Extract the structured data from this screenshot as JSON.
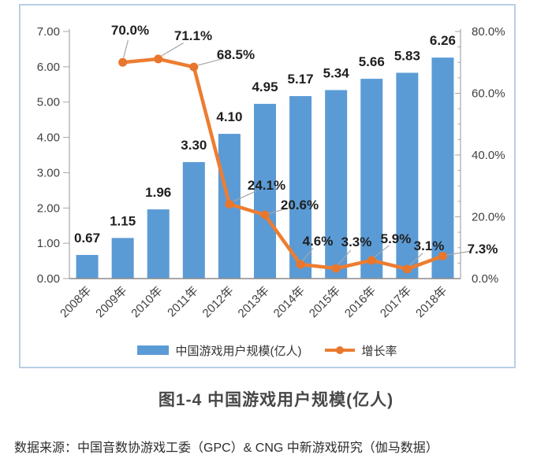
{
  "chart_data": {
    "type": "combo-bar-line",
    "title": "",
    "categories": [
      "2008年",
      "2009年",
      "2010年",
      "2011年",
      "2012年",
      "2013年",
      "2014年",
      "2015年",
      "2016年",
      "2017年",
      "2018年"
    ],
    "series": [
      {
        "name": "中国游戏用户规模(亿人)",
        "type": "bar",
        "axis": "left",
        "color": "#5b9bd5",
        "values": [
          0.67,
          1.15,
          1.96,
          3.3,
          4.1,
          4.95,
          5.17,
          5.34,
          5.66,
          5.83,
          6.26
        ],
        "labels": [
          "0.67",
          "1.15",
          "1.96",
          "3.30",
          "4.10",
          "4.95",
          "5.17",
          "5.34",
          "5.66",
          "5.83",
          "6.26"
        ]
      },
      {
        "name": "增长率",
        "type": "line",
        "axis": "right",
        "color": "#ed7d31",
        "point_color": "#e8762c",
        "values": [
          null,
          70.0,
          71.1,
          68.5,
          24.1,
          20.6,
          4.6,
          3.3,
          5.9,
          3.1,
          7.3
        ],
        "labels": [
          null,
          "70.0%",
          "71.1%",
          "68.5%",
          "24.1%",
          "20.6%",
          "4.6%",
          "3.3%",
          "5.9%",
          "3.1%",
          "7.3%"
        ],
        "label_centers": [
          null,
          [
            139,
            31
          ],
          [
            219,
            38
          ],
          [
            273,
            62
          ],
          [
            312,
            228
          ],
          [
            354,
            253
          ],
          [
            377,
            299
          ],
          [
            426,
            300
          ],
          [
            476,
            296
          ],
          [
            518,
            305
          ],
          [
            586,
            309
          ]
        ]
      }
    ],
    "left_axis": {
      "min": 0,
      "max": 7,
      "step": 1,
      "labels": [
        "0.00",
        "1.00",
        "2.00",
        "3.00",
        "4.00",
        "5.00",
        "6.00",
        "7.00"
      ]
    },
    "right_axis": {
      "min": 0,
      "max": 80,
      "major_step": 20,
      "minor_step": 5,
      "labels": [
        "0.0%",
        "20.0%",
        "40.0%",
        "60.0%",
        "80.0%"
      ]
    },
    "grid": false,
    "legend_position": "bottom-center",
    "colors": {
      "frame_border": "#b9cfe4",
      "axis_line": "#a6a6a6",
      "x_axis_line": "#8c8c8c",
      "tick_label": "#404040",
      "data_label": "#1f1f1f",
      "leader_line": "#a6a6a6"
    }
  },
  "legend": {
    "bar_label": "中国游戏用户规模(亿人)",
    "line_label": "增长率"
  },
  "caption": {
    "title": "图1-4  中国游戏用户规模(亿人)"
  },
  "source": {
    "text": "数据来源：中国音数协游戏工委（GPC）& CNG 中新游戏研究（伽马数据）"
  }
}
